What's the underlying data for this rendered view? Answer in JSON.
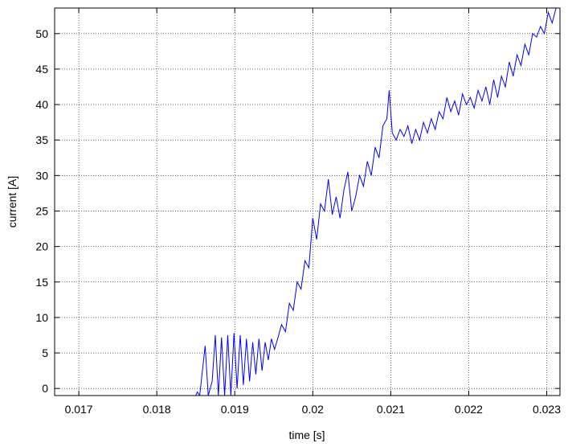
{
  "chart_data": {
    "type": "line",
    "xlabel": "time [s]",
    "ylabel": "current [A]",
    "x": [
      0.0185,
      0.01852,
      0.01855,
      0.01862,
      0.01866,
      0.01871,
      0.01875,
      0.01879,
      0.01883,
      0.01887,
      0.01891,
      0.01895,
      0.01899,
      0.01903,
      0.01907,
      0.01911,
      0.01915,
      0.01919,
      0.01923,
      0.01927,
      0.01931,
      0.01935,
      0.01939,
      0.01943,
      0.01947,
      0.01951,
      0.01955,
      0.0196,
      0.01965,
      0.0197,
      0.01975,
      0.0198,
      0.01985,
      0.0199,
      0.01995,
      0.02,
      0.02005,
      0.0201,
      0.02015,
      0.0202,
      0.02025,
      0.0203,
      0.02035,
      0.0204,
      0.02045,
      0.0205,
      0.02055,
      0.0206,
      0.02065,
      0.0207,
      0.02075,
      0.0208,
      0.02085,
      0.0209,
      0.02095,
      0.02098,
      0.02102,
      0.02107,
      0.02112,
      0.02117,
      0.02122,
      0.02127,
      0.02132,
      0.02137,
      0.02142,
      0.02147,
      0.02152,
      0.02157,
      0.02162,
      0.02167,
      0.02172,
      0.02177,
      0.02182,
      0.02187,
      0.02192,
      0.02197,
      0.02202,
      0.02207,
      0.02212,
      0.02217,
      0.02222,
      0.02227,
      0.02232,
      0.02237,
      0.02242,
      0.02247,
      0.02252,
      0.02257,
      0.02262,
      0.02267,
      0.02272,
      0.02277,
      0.02282,
      0.02287,
      0.02292,
      0.02297,
      0.02302,
      0.02307,
      0.02312
    ],
    "series": [
      {
        "color": "#0000ff",
        "values": [
          -1,
          -0.5,
          -1,
          6,
          -1,
          1,
          7.5,
          -1,
          7.2,
          -1,
          7.5,
          -1,
          7.8,
          0,
          7.5,
          0.5,
          7,
          1,
          6.5,
          2,
          7,
          2.5,
          6.5,
          4,
          7,
          5.5,
          7,
          9,
          8,
          12,
          11,
          15,
          14,
          18,
          17,
          24,
          21,
          26,
          25,
          29.5,
          24.5,
          27,
          24,
          28,
          30.5,
          25,
          27,
          30,
          28.5,
          32,
          30,
          34,
          32.5,
          37,
          38,
          42,
          36,
          35,
          36.5,
          35.5,
          37,
          34.5,
          36.5,
          35,
          37.5,
          36,
          38,
          36.5,
          39,
          38,
          41,
          39,
          40.5,
          38.5,
          41.5,
          40,
          41,
          39.5,
          42,
          40.5,
          42.5,
          40,
          43.5,
          41,
          44,
          42.5,
          46,
          44,
          47,
          45.5,
          48.5,
          47,
          50,
          49.5,
          51,
          50,
          53,
          51.5,
          53.6
        ]
      }
    ],
    "xlim": [
      0.01669,
      0.02317
    ],
    "ylim": [
      -1,
      53.6
    ],
    "xticks": [
      0.017,
      0.018,
      0.019,
      0.02,
      0.021,
      0.022,
      0.023
    ],
    "yticks": [
      0,
      5,
      10,
      15,
      20,
      25,
      30,
      35,
      40,
      45,
      50
    ],
    "grid": true
  }
}
